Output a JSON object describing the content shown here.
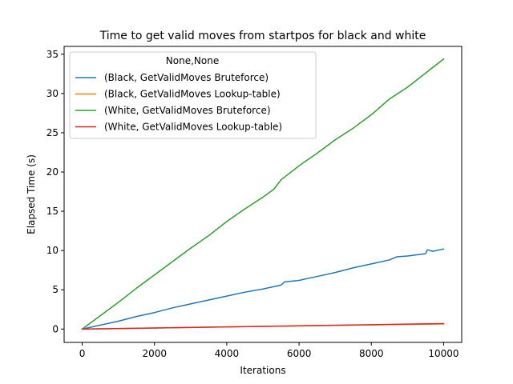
{
  "chart_data": {
    "type": "line",
    "title": "Time to get valid moves from startpos for black and white",
    "xlabel": "Iterations",
    "ylabel": "Elapsed Time (s)",
    "xlim": [
      -500,
      10500
    ],
    "ylim": [
      -1.7,
      36.0
    ],
    "xticks": [
      0,
      2000,
      4000,
      6000,
      8000,
      10000
    ],
    "yticks": [
      0,
      5,
      10,
      15,
      20,
      25,
      30,
      35
    ],
    "grid": false,
    "legend": {
      "title": "None,None",
      "placement": "top-left"
    },
    "series": [
      {
        "name": "(Black, GetValidMoves Bruteforce)",
        "color": "#1f77b4",
        "x": [
          0,
          500,
          1000,
          1500,
          2000,
          2500,
          3000,
          3500,
          4000,
          4500,
          5000,
          5500,
          5600,
          6000,
          6500,
          7000,
          7500,
          8000,
          8500,
          8700,
          9000,
          9500,
          9550,
          9700,
          10000
        ],
        "y": [
          0,
          0.5,
          1.0,
          1.6,
          2.1,
          2.7,
          3.2,
          3.7,
          4.2,
          4.7,
          5.1,
          5.6,
          6.0,
          6.2,
          6.7,
          7.2,
          7.8,
          8.3,
          8.8,
          9.2,
          9.3,
          9.6,
          10.1,
          9.9,
          10.2
        ]
      },
      {
        "name": "(Black, GetValidMoves Lookup-table)",
        "color": "#ff7f0e",
        "x": [
          0,
          2000,
          4000,
          6000,
          8000,
          10000
        ],
        "y": [
          0,
          0.13,
          0.27,
          0.4,
          0.53,
          0.66
        ]
      },
      {
        "name": "(White, GetValidMoves Bruteforce)",
        "color": "#2ca02c",
        "x": [
          0,
          500,
          1000,
          1500,
          2000,
          2500,
          3000,
          3500,
          4000,
          4500,
          5000,
          5300,
          5500,
          6000,
          6500,
          7000,
          7500,
          8000,
          8500,
          9000,
          9500,
          10000
        ],
        "y": [
          0,
          1.7,
          3.4,
          5.2,
          6.9,
          8.6,
          10.3,
          11.9,
          13.7,
          15.3,
          16.8,
          17.8,
          19.0,
          20.8,
          22.4,
          24.1,
          25.6,
          27.3,
          29.3,
          30.8,
          32.6,
          34.4
        ]
      },
      {
        "name": "(White, GetValidMoves Lookup-table)",
        "color": "#d62728",
        "x": [
          0,
          2000,
          4000,
          6000,
          8000,
          10000
        ],
        "y": [
          0,
          0.14,
          0.28,
          0.42,
          0.56,
          0.7
        ]
      }
    ]
  }
}
